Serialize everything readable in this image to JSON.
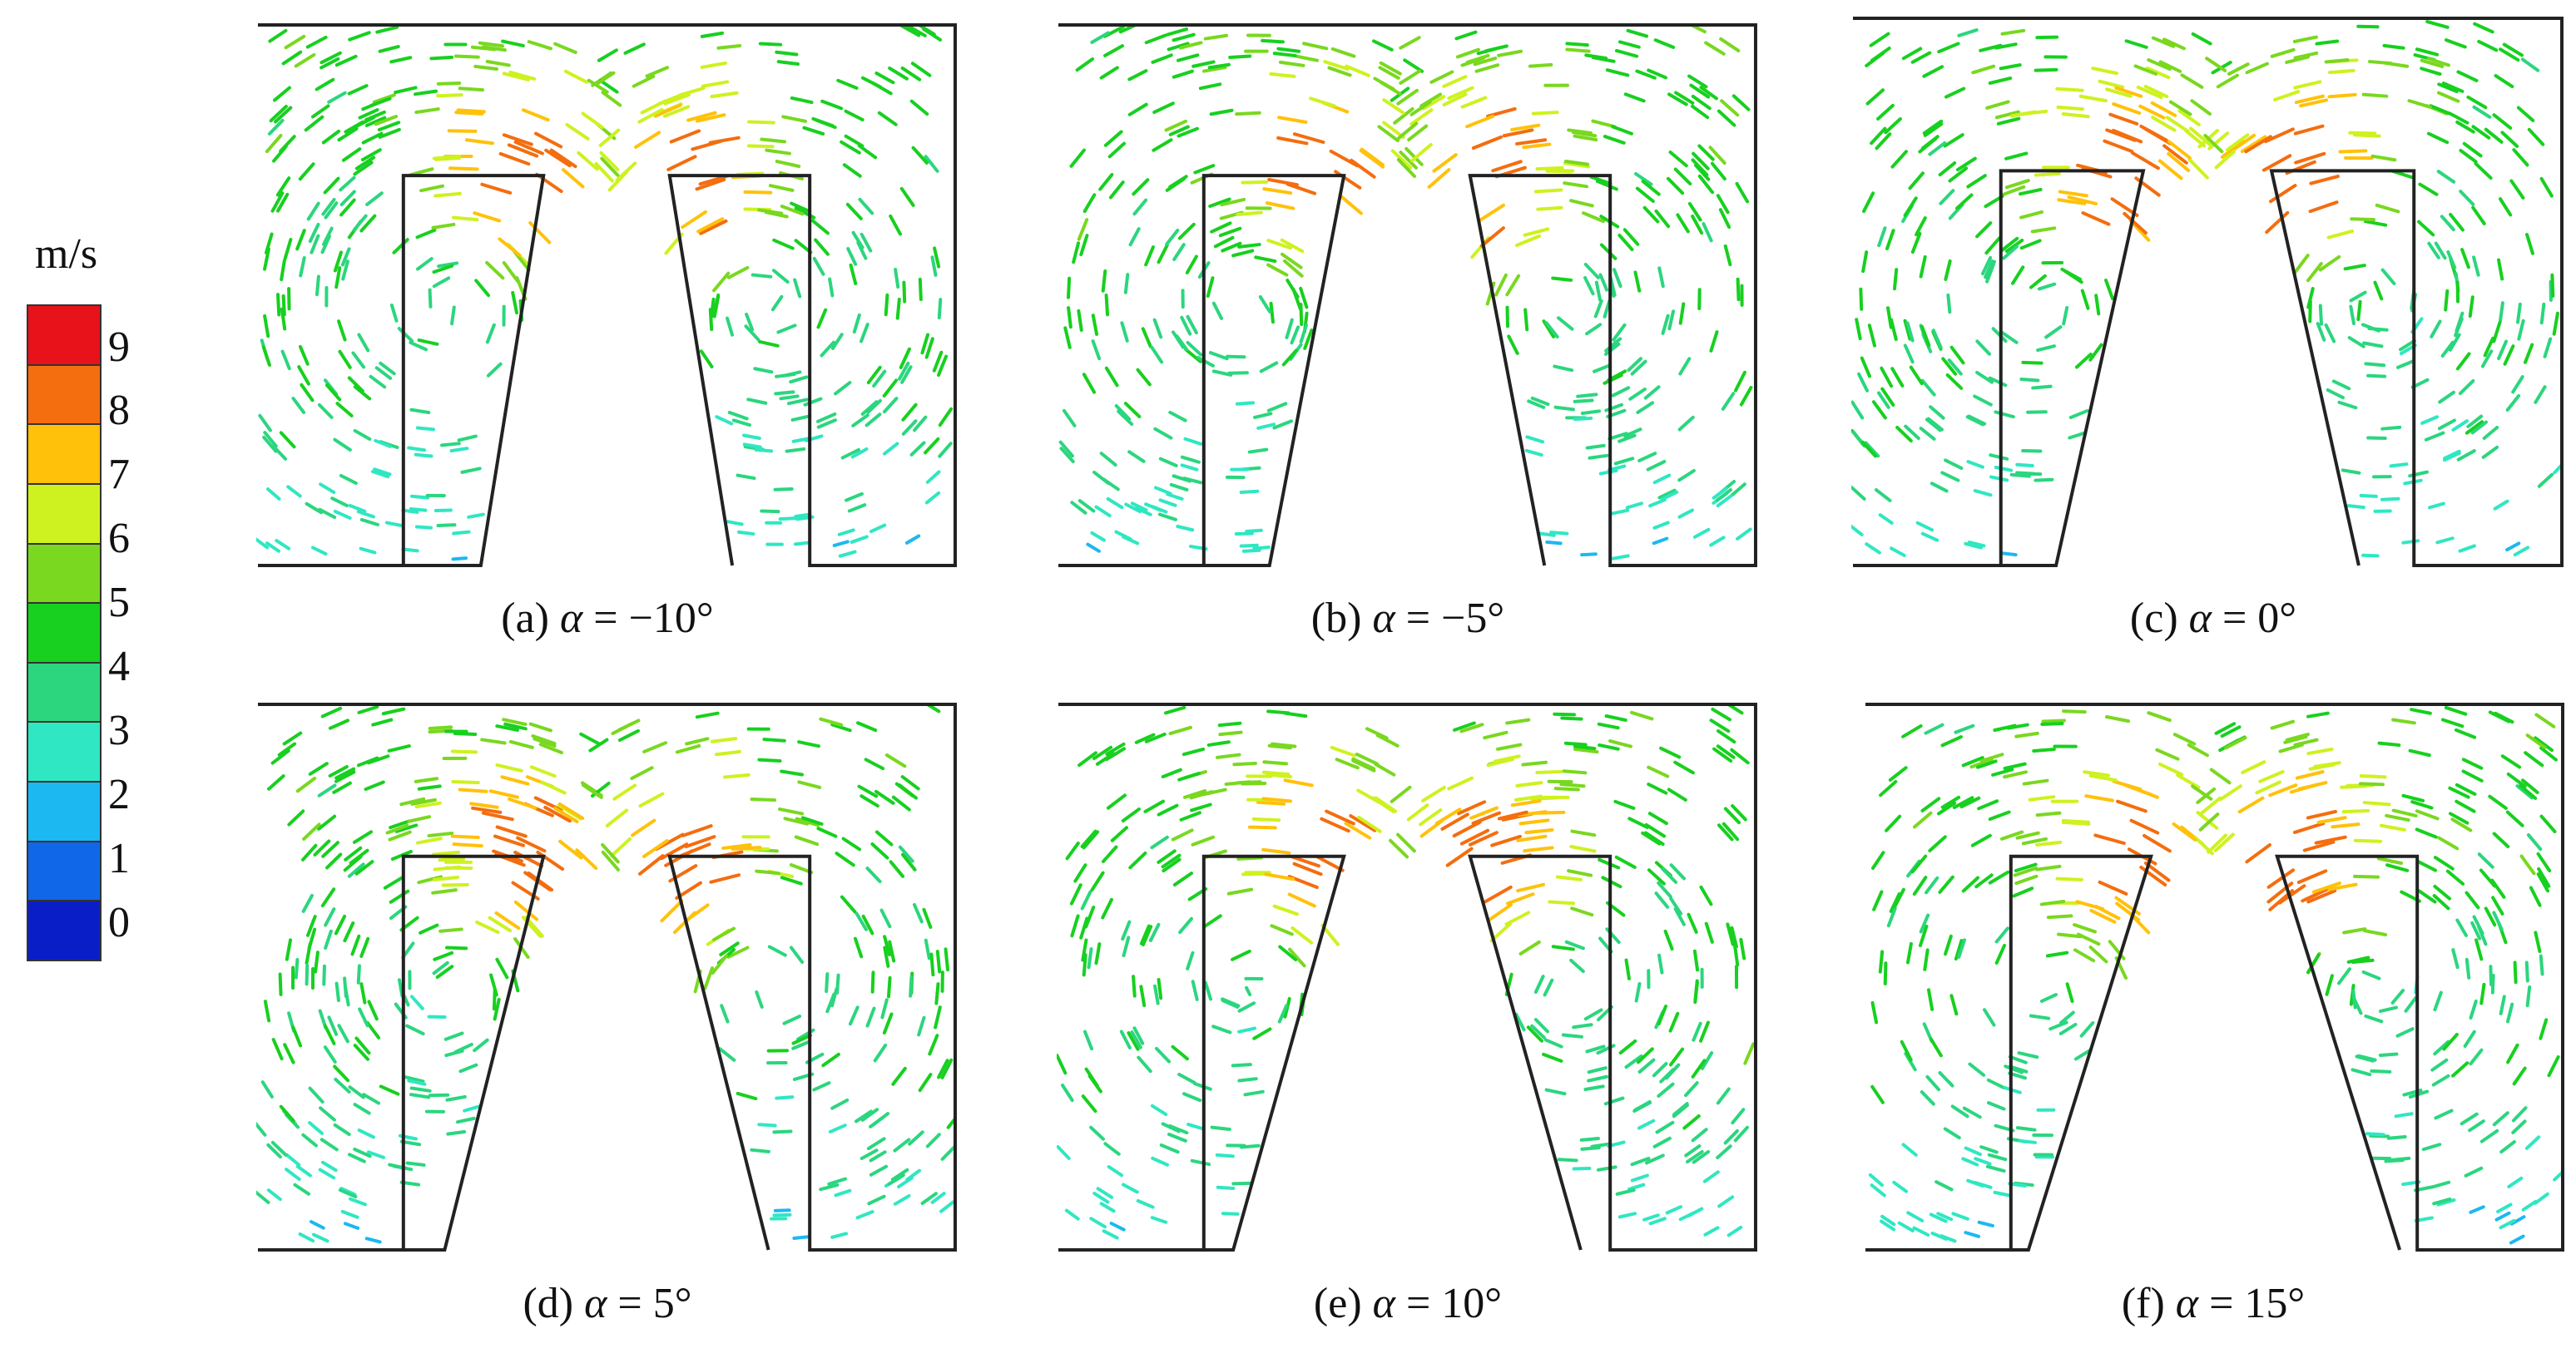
{
  "legend": {
    "unit": "m/s",
    "colors": [
      "#d7191c",
      "#ff6a00",
      "#ffc107",
      "#d4f42c",
      "#72d630",
      "#19cc2c",
      "#2fd27a",
      "#38e0c4",
      "#22b4f0",
      "#1f6ee8",
      "#1027c8"
    ],
    "ticks": [
      "9",
      "8",
      "7",
      "6",
      "5",
      "4",
      "3",
      "2",
      "1",
      "0"
    ]
  },
  "panels": [
    {
      "id": "a",
      "label": "(a)",
      "symbol": "α",
      "value": "= −10°",
      "alpha": -10
    },
    {
      "id": "b",
      "label": "(b)",
      "symbol": "α",
      "value": "= −5°",
      "alpha": -5
    },
    {
      "id": "c",
      "label": "(c)",
      "symbol": "α",
      "value": "= 0°",
      "alpha": 0
    },
    {
      "id": "d",
      "label": "(d)",
      "symbol": "α",
      "value": "= 5°",
      "alpha": 5
    },
    {
      "id": "e",
      "label": "(e)",
      "symbol": "α",
      "value": "= 10°",
      "alpha": 10
    },
    {
      "id": "f",
      "label": "(f)",
      "symbol": "α",
      "value": "= 15°",
      "alpha": 15
    }
  ]
}
